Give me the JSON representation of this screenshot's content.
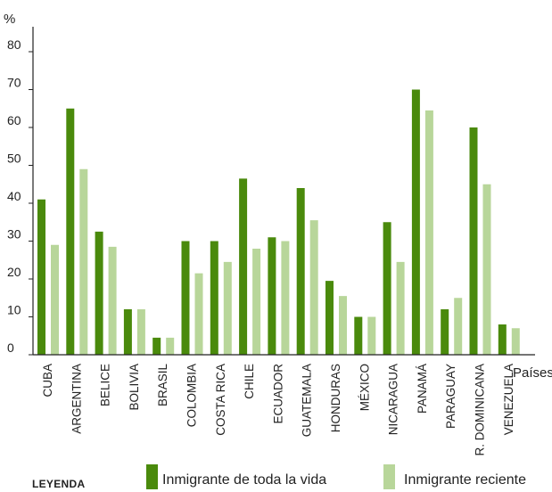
{
  "chart_data": {
    "type": "bar",
    "ylabel": "%",
    "xlabel": "Países",
    "ylim": [
      0,
      85
    ],
    "yticks": [
      0,
      10,
      20,
      30,
      40,
      50,
      60,
      70,
      80
    ],
    "categories": [
      "CUBA",
      "ARGENTINA",
      "BELICE",
      "BOLIVIA",
      "BRASIL",
      "COLOMBIA",
      "COSTA RICA",
      "CHILE",
      "ECUADOR",
      "GUATEMALA",
      "HONDURAS",
      "MÉXICO",
      "NICARAGUA",
      "PANAMÁ",
      "PARAGUAY",
      "R. DOMINICANA",
      "VENEZUELA"
    ],
    "series": [
      {
        "name": "Inmigrante de toda la vida",
        "color": "#4a8a0c",
        "values": [
          41,
          65,
          32.5,
          12,
          4.5,
          30,
          30,
          46.5,
          31,
          44,
          19.5,
          10,
          35,
          70,
          12,
          60,
          8
        ]
      },
      {
        "name": "Inmigrante reciente",
        "color": "#b8d69a",
        "values": [
          29,
          49,
          28.5,
          12,
          4.5,
          21.5,
          24.5,
          28,
          30,
          35.5,
          15.5,
          10,
          24.5,
          64.5,
          15,
          45,
          7
        ]
      }
    ]
  },
  "legend": {
    "title": "LEYENDA",
    "item1": "Inmigrante de toda la vida",
    "item2": "Inmigrante reciente"
  }
}
